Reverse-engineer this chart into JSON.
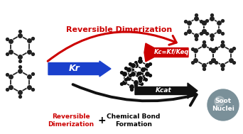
{
  "bg_color": "#ffffff",
  "red_arrow_label": "Reversible Dimerization",
  "blue_arrow_label": "Kr",
  "black_arrow_label": "Kcat",
  "red_banner_label": "Kc=Kf/Keq",
  "bottom_label1": "Reversible\nDimerization",
  "bottom_plus": "+",
  "bottom_label2": "Chemical Bond\nFormation",
  "soot_label": "Soot\nNuclei",
  "soot_color": "#7a9099",
  "red_color": "#cc0000",
  "blue_color": "#1a40cc",
  "black_color": "#111111",
  "mol_color": "#222222",
  "naphthalene_color": "#444444"
}
